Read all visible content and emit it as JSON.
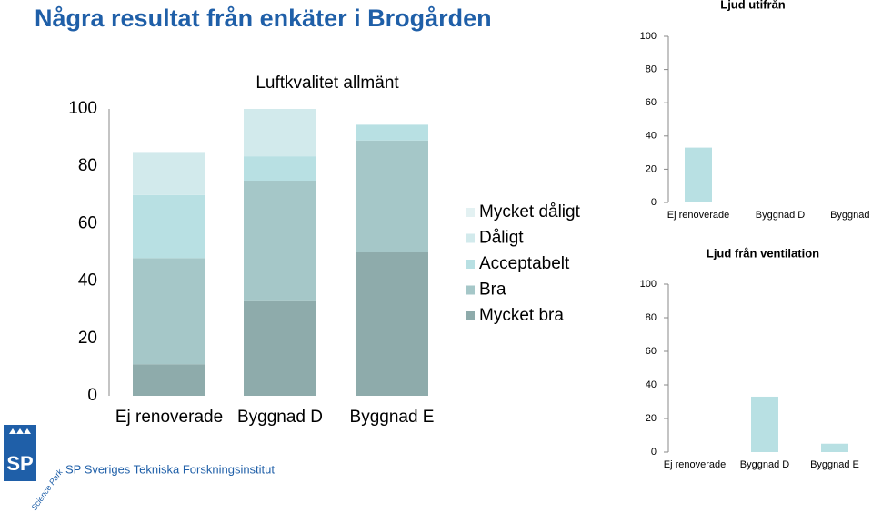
{
  "title": "Några resultat från enkäter i Brogården",
  "chart_data": [
    {
      "type": "stacked-bar",
      "title": "Luftkvalitet allmänt",
      "categories": [
        "Ej renoverade",
        "Byggnad D",
        "Byggnad E"
      ],
      "series": [
        {
          "name": "Mycket bra",
          "color": "#8eabab",
          "values": [
            11,
            33,
            50
          ]
        },
        {
          "name": "Bra",
          "color": "#a5c7c8",
          "values": [
            37,
            42,
            39
          ]
        },
        {
          "name": "Acceptabelt",
          "color": "#b8e0e3",
          "values": [
            22,
            8.5,
            5.5
          ]
        },
        {
          "name": "Dåligt",
          "color": "#d2eaec",
          "values": [
            15,
            16.5,
            0
          ]
        },
        {
          "name": "Mycket dåligt",
          "color": "#e3f1f2",
          "values": [
            0,
            0,
            0
          ]
        }
      ],
      "ylim": [
        0,
        100
      ],
      "yticks": [
        0,
        20,
        40,
        60,
        80,
        100
      ],
      "legend": "right"
    },
    {
      "type": "bar",
      "title": "Ljud utifrån",
      "categories": [
        "Ej renoverade",
        "Byggnad D",
        "Byggnad E"
      ],
      "values": [
        33,
        0,
        0
      ],
      "color": "#b8e0e3",
      "ylim": [
        0,
        100
      ],
      "yticks": [
        0,
        20,
        40,
        60,
        80,
        100
      ]
    },
    {
      "type": "bar",
      "title": "Ljud från ventilation",
      "categories": [
        "Ej renoverade",
        "Byggnad D",
        "Byggnad E"
      ],
      "values": [
        0,
        33,
        5
      ],
      "color": "#b8e0e3",
      "ylim": [
        0,
        100
      ],
      "yticks": [
        0,
        20,
        40,
        60,
        80,
        100
      ]
    }
  ],
  "logo": {
    "mark": "SP",
    "ribbon": "Science Park",
    "name": "SP Sveriges Tekniska Forskningsinstitut"
  }
}
